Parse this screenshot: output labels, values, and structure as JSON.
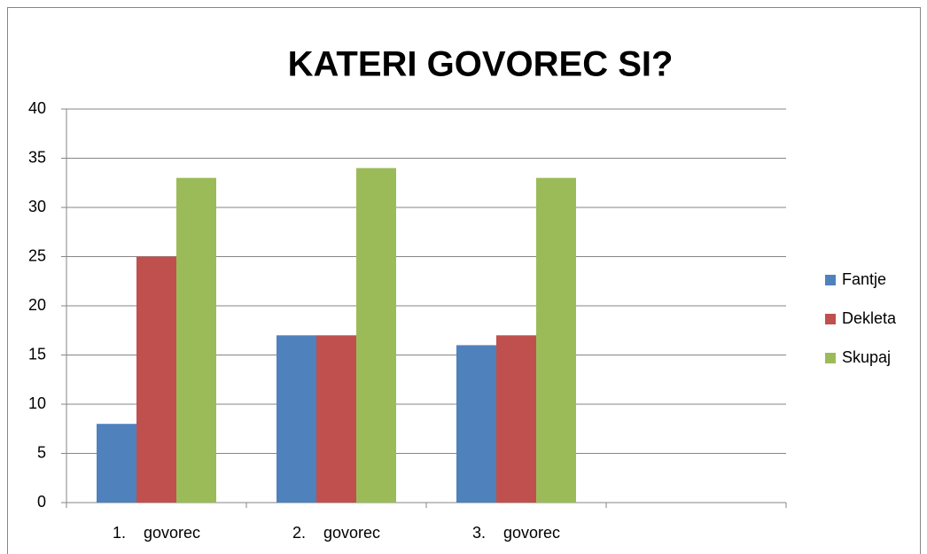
{
  "chart_data": {
    "type": "bar",
    "title": "KATERI GOVOREC SI?",
    "categories": [
      "1.    govorec",
      "2.    govorec",
      "3.    govorec",
      null
    ],
    "series": [
      {
        "name": "Fantje",
        "color": "#4f81bd",
        "values": [
          8,
          17,
          16,
          null
        ]
      },
      {
        "name": "Dekleta",
        "color": "#c0504d",
        "values": [
          25,
          17,
          17,
          null
        ]
      },
      {
        "name": "Skupaj",
        "color": "#9bbb59",
        "values": [
          33,
          34,
          33,
          null
        ]
      }
    ],
    "ylim": [
      0,
      40
    ],
    "yticks": [
      0,
      5,
      10,
      15,
      20,
      25,
      30,
      35,
      40
    ],
    "grid": true,
    "legend": "right"
  }
}
